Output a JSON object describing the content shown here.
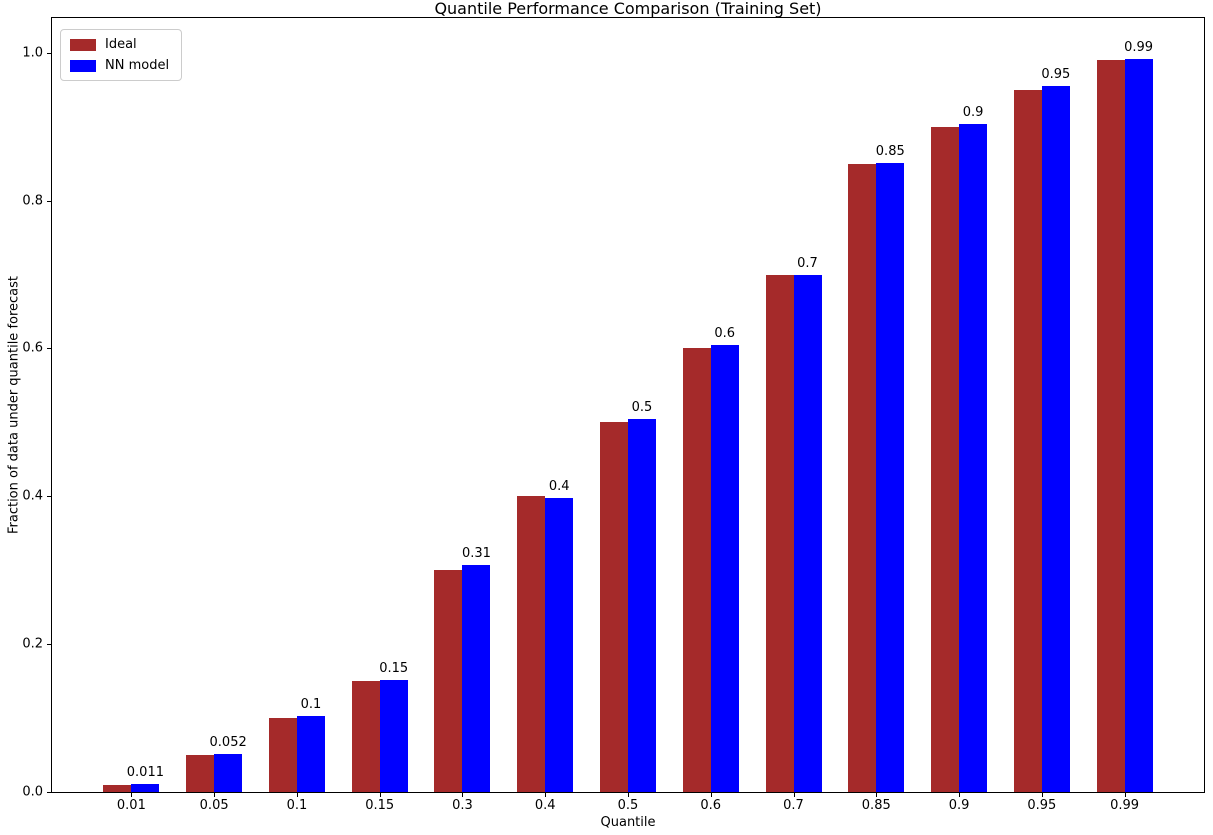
{
  "chart_data": {
    "type": "bar",
    "title": "Quantile Performance Comparison (Training Set)",
    "xlabel": "Quantile",
    "ylabel": "Fraction of data under quantile forecast",
    "categories": [
      "0.01",
      "0.05",
      "0.1",
      "0.15",
      "0.3",
      "0.4",
      "0.5",
      "0.6",
      "0.7",
      "0.85",
      "0.9",
      "0.95",
      "0.99"
    ],
    "series": [
      {
        "name": "Ideal",
        "color": "#a52a2a",
        "values": [
          0.01,
          0.05,
          0.1,
          0.15,
          0.3,
          0.4,
          0.5,
          0.6,
          0.7,
          0.85,
          0.9,
          0.95,
          0.99
        ]
      },
      {
        "name": "NN model",
        "color": "#0000ff",
        "values": [
          0.011,
          0.052,
          0.103,
          0.152,
          0.307,
          0.398,
          0.504,
          0.605,
          0.7,
          0.851,
          0.903,
          0.955,
          0.992
        ]
      }
    ],
    "bar_labels": [
      "0.011",
      "0.052",
      "0.1",
      "0.15",
      "0.31",
      "0.4",
      "0.5",
      "0.6",
      "0.7",
      "0.85",
      "0.9",
      "0.95",
      "0.99"
    ],
    "yticks": [
      {
        "value": 0.0,
        "label": "0.0"
      },
      {
        "value": 0.2,
        "label": "0.2"
      },
      {
        "value": 0.4,
        "label": "0.4"
      },
      {
        "value": 0.6,
        "label": "0.6"
      },
      {
        "value": 0.8,
        "label": "0.8"
      },
      {
        "value": 1.0,
        "label": "1.0"
      }
    ],
    "ylim": [
      0,
      1.047
    ],
    "grid": false,
    "legend_position": "upper left"
  }
}
